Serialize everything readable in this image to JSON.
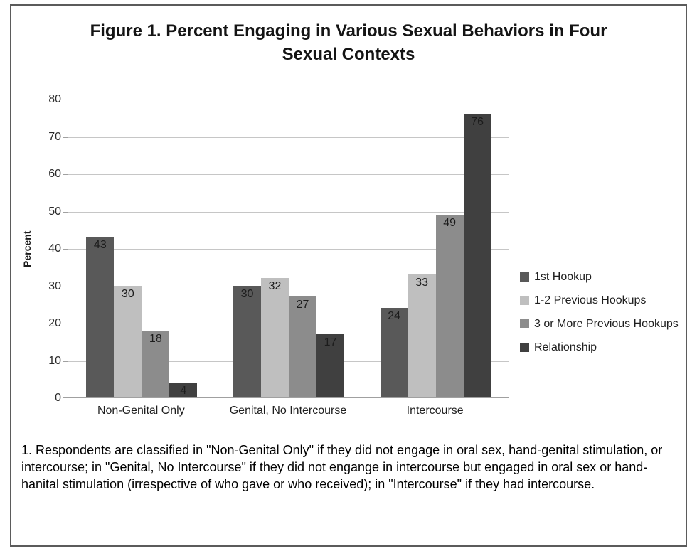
{
  "chart_data": {
    "type": "bar",
    "title": "Figure 1. Percent Engaging in Various Sexual Behaviors in Four Sexual Contexts",
    "xlabel": "",
    "ylabel": "Percent",
    "ylim": [
      0,
      80
    ],
    "yticks": [
      0,
      10,
      20,
      30,
      40,
      50,
      60,
      70,
      80
    ],
    "grid": true,
    "data_labels": true,
    "legend_position": "right",
    "categories": [
      "Non-Genital Only",
      "Genital, No Intercourse",
      "Intercourse"
    ],
    "series": [
      {
        "name": "1st Hookup",
        "color": "#595959",
        "values": [
          43,
          30,
          24
        ]
      },
      {
        "name": "1-2 Previous Hookups",
        "color": "#bfbfbf",
        "values": [
          30,
          32,
          33
        ]
      },
      {
        "name": "3 or More Previous Hookups",
        "color": "#8c8c8c",
        "values": [
          18,
          27,
          49
        ]
      },
      {
        "name": "Relationship",
        "color": "#404040",
        "values": [
          4,
          17,
          76
        ]
      }
    ],
    "colors": {
      "gridline": "#c6c6c6",
      "axis": "#a0a0a0",
      "bar_label": "#1c1c1c"
    }
  },
  "footnote": "1. Respondents are classified in \"Non-Genital Only\" if they did not engage in oral sex, hand-genital stimulation, or intercourse; in \"Genital, No Intercourse\" if they did not engange in intercourse but engaged in oral sex or hand-hanital stimulation (irrespective of who gave or who received); in \"Intercourse\" if they had intercourse."
}
